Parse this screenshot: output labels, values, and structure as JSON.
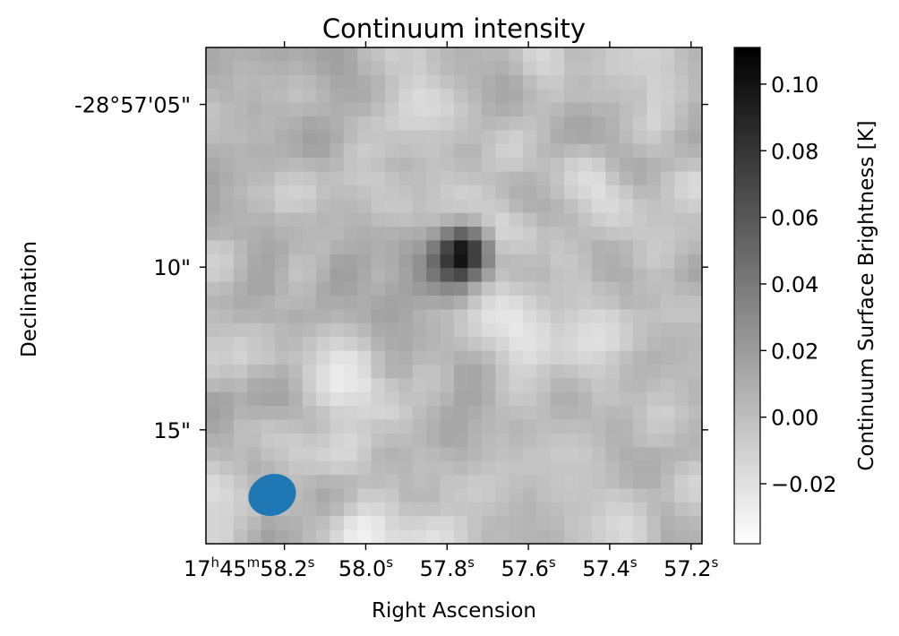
{
  "chart_data": {
    "type": "heatmap",
    "title": "Continuum intensity",
    "xlabel": "Right Ascension",
    "ylabel": "Declination",
    "x_ticks": [
      {
        "h": "17",
        "h_unit": "h",
        "m": "45",
        "m_unit": "m",
        "s": "58.2",
        "s_unit": "s",
        "value_s": 58.2
      },
      {
        "s": "58.0",
        "s_unit": "s",
        "value_s": 58.0
      },
      {
        "s": "57.8",
        "s_unit": "s",
        "value_s": 57.8
      },
      {
        "s": "57.6",
        "s_unit": "s",
        "value_s": 57.6
      },
      {
        "s": "57.4",
        "s_unit": "s",
        "value_s": 57.4
      },
      {
        "s": "57.2",
        "s_unit": "s",
        "value_s": 57.2
      }
    ],
    "y_ticks": [
      {
        "label": "-28°57'05\"",
        "value_arcsec": 5
      },
      {
        "label": "10\"",
        "value_arcsec": 10
      },
      {
        "label": "15\"",
        "value_arcsec": 15
      }
    ],
    "xlim_s": [
      58.393,
      57.173
    ],
    "ylim_arcsec": [
      3.25,
      18.5
    ],
    "colorbar": {
      "label": "Continuum Surface Brightness [K]",
      "ticks": [
        "−0.02",
        "0.00",
        "0.02",
        "0.04",
        "0.06",
        "0.08",
        "0.10"
      ],
      "tick_values": [
        -0.02,
        0.0,
        0.02,
        0.04,
        0.06,
        0.08,
        0.1
      ],
      "vmin": -0.038,
      "vmax": 0.111,
      "colormap": "gray_r"
    },
    "source": {
      "ra_s": 57.76,
      "dec_arcsec": 9.6,
      "peak": 0.111
    },
    "beam": {
      "ra_s": 58.23,
      "dec_arcsec": 17.0,
      "color": "#1f77b4"
    }
  }
}
